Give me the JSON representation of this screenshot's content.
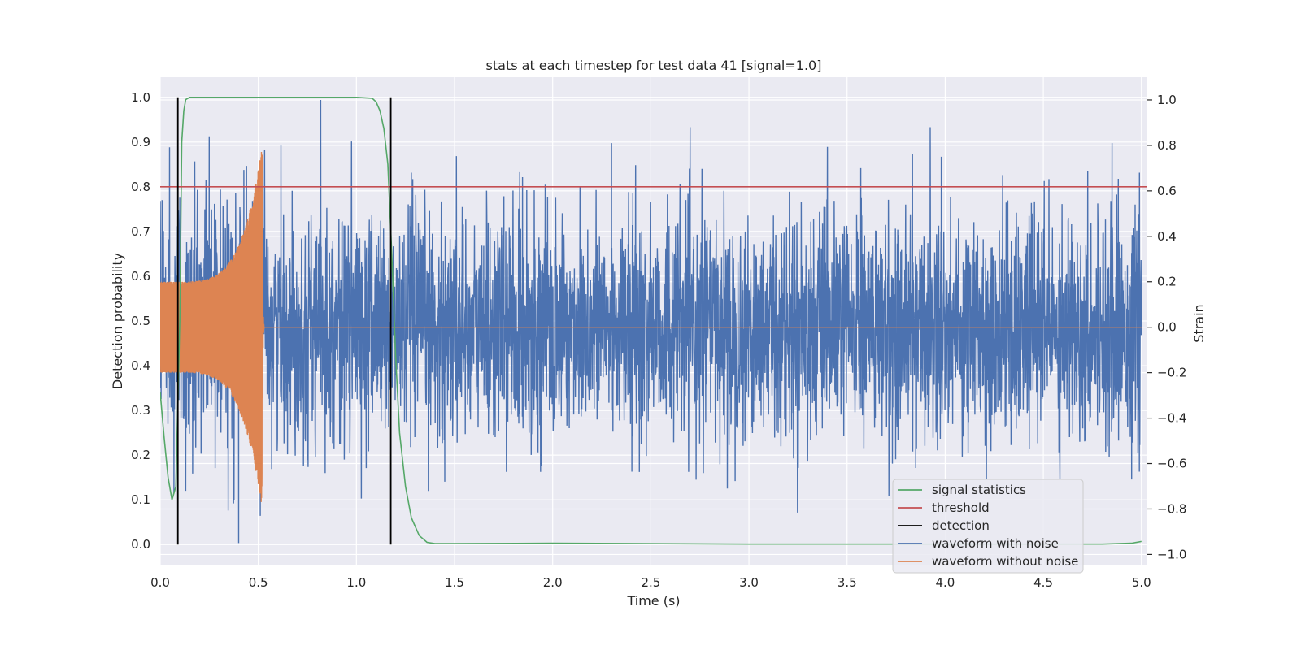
{
  "chart_data": {
    "type": "line",
    "title": "stats at each timestep for test data 41 [signal=1.0]",
    "xlabel": "Time (s)",
    "ylabel": "Detection probability",
    "y2label": "Strain",
    "xlim": [
      0.0,
      5.03
    ],
    "ylim": [
      -0.045,
      1.045
    ],
    "y2lim": [
      -1.045,
      1.1
    ],
    "xticks": [
      "0.0",
      "0.5",
      "1.0",
      "1.5",
      "2.0",
      "2.5",
      "3.0",
      "3.5",
      "4.0",
      "4.5",
      "5.0"
    ],
    "yticks": [
      "0.0",
      "0.1",
      "0.2",
      "0.3",
      "0.4",
      "0.5",
      "0.6",
      "0.7",
      "0.8",
      "0.9",
      "1.0"
    ],
    "y2ticks": [
      "−1.0",
      "−0.8",
      "−0.6",
      "−0.4",
      "−0.2",
      "0.0",
      "0.2",
      "0.4",
      "0.6",
      "0.8",
      "1.0"
    ],
    "grid": true,
    "legend_position": "lower right",
    "colors": {
      "background": "#eaeaf2",
      "grid": "#ffffff",
      "signal": "#55a868",
      "threshold": "#c44e52",
      "detection": "#000000",
      "noisy": "#4c72b0",
      "clean": "#dd8452"
    },
    "series": [
      {
        "name": "signal statistics",
        "axis": "left",
        "x": [
          0.0,
          0.02,
          0.04,
          0.06,
          0.08,
          0.1,
          0.11,
          0.12,
          0.13,
          0.15,
          0.2,
          0.5,
          1.0,
          1.08,
          1.1,
          1.12,
          1.14,
          1.16,
          1.18,
          1.2,
          1.22,
          1.25,
          1.28,
          1.32,
          1.36,
          1.4,
          1.5,
          2.0,
          3.0,
          4.0,
          4.8,
          4.95,
          5.0
        ],
        "values": [
          0.34,
          0.24,
          0.15,
          0.1,
          0.13,
          0.5,
          0.9,
          0.97,
          0.995,
          1.0,
          1.0,
          1.0,
          1.0,
          0.998,
          0.99,
          0.97,
          0.93,
          0.85,
          0.65,
          0.42,
          0.25,
          0.13,
          0.06,
          0.02,
          0.005,
          0.002,
          0.002,
          0.003,
          0.001,
          0.001,
          0.001,
          0.003,
          0.007
        ]
      },
      {
        "name": "threshold",
        "axis": "left",
        "x": [
          0.0,
          5.03
        ],
        "values": [
          0.8,
          0.8
        ]
      },
      {
        "name": "detection",
        "axis": "left",
        "type": "vlines",
        "x": [
          0.09,
          1.175
        ],
        "ymin": 0.0,
        "ymax": 1.0
      },
      {
        "name": "waveform with noise",
        "axis": "right",
        "x_range": [
          0.0,
          5.0
        ],
        "amplitude": 0.24,
        "peaks": [
          {
            "x": 0.07,
            "y": -0.73
          },
          {
            "x": 0.1,
            "y": 0.57
          },
          {
            "x": 0.13,
            "y": -0.72
          },
          {
            "x": 0.25,
            "y": 0.84
          },
          {
            "x": 0.28,
            "y": -0.62
          },
          {
            "x": 0.4,
            "y": -0.95
          },
          {
            "x": 0.44,
            "y": 0.71
          },
          {
            "x": 0.51,
            "y": -0.83
          },
          {
            "x": 0.818,
            "y": 1.0
          },
          {
            "x": 0.73,
            "y": -0.61
          },
          {
            "x": 1.05,
            "y": -0.62
          },
          {
            "x": 1.28,
            "y": 0.68
          },
          {
            "x": 1.45,
            "y": -0.68
          },
          {
            "x": 2.3,
            "y": 0.81
          },
          {
            "x": 2.89,
            "y": -0.71
          },
          {
            "x": 3.57,
            "y": 0.7
          },
          {
            "x": 3.98,
            "y": 0.75
          },
          {
            "x": 4.21,
            "y": -0.67
          },
          {
            "x": 4.85,
            "y": 0.81
          },
          {
            "x": 4.95,
            "y": -0.67
          },
          {
            "x": 4.99,
            "y": 0.68
          }
        ]
      },
      {
        "name": "waveform without noise",
        "axis": "right",
        "x_range": [
          0.0,
          0.53
        ],
        "merger_time": 0.52,
        "amplitude_start": 0.2,
        "amplitude_peak": 0.8,
        "after_merger_value": 0.0
      }
    ]
  }
}
